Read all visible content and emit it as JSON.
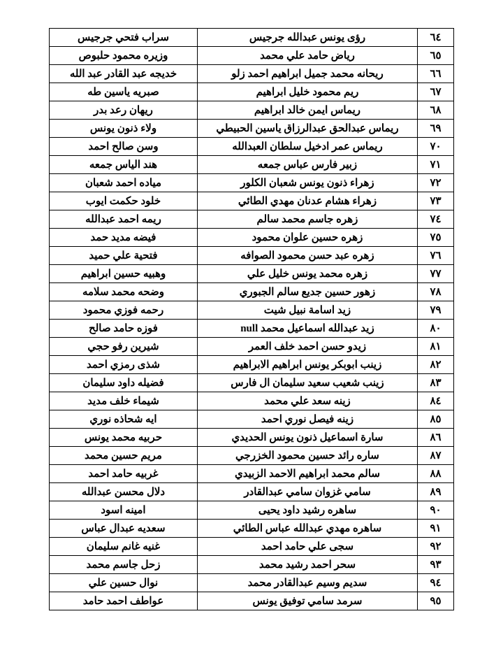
{
  "table": {
    "columns": [
      "num",
      "name1",
      "name2"
    ],
    "col_widths": {
      "num": "52px",
      "name1": "55%",
      "name2": "37%"
    },
    "border_color": "#000000",
    "text_color": "#000000",
    "background_color": "#ffffff",
    "font_size": 15,
    "font_weight": "bold",
    "rows": [
      {
        "num": "٦٤",
        "name1": "رؤى يونس عبدالله جرجيس",
        "name2": "سراب فتحي جرجيس"
      },
      {
        "num": "٦٥",
        "name1": "رياض حامد علي محمد",
        "name2": "وزيره محمود حلبوص"
      },
      {
        "num": "٦٦",
        "name1": "ريحانه محمد جميل ابراهيم احمد زلو",
        "name2": "خديجه عبد القادر عبد الله"
      },
      {
        "num": "٦٧",
        "name1": "ريم محمود خليل ابراهيم",
        "name2": "صبريه ياسين طه"
      },
      {
        "num": "٦٨",
        "name1": "ريماس ايمن خالد ابراهيم",
        "name2": "ريهان رعد بدر"
      },
      {
        "num": "٦٩",
        "name1": "ريماس عبدالحق عبدالرزاق ياسين الحبيطي",
        "name2": "ولاء ذنون يونس"
      },
      {
        "num": "٧٠",
        "name1": "ريماس عمر ادخيل سلطان العبدالله",
        "name2": "وسن صالح احمد"
      },
      {
        "num": "٧١",
        "name1": "زبير فارس عباس جمعه",
        "name2": "هند الياس جمعه"
      },
      {
        "num": "٧٢",
        "name1": "زهراء ذنون يونس شعبان الكلور",
        "name2": "مياده احمد شعبان"
      },
      {
        "num": "٧٣",
        "name1": "زهراء هشام عدنان مهدي الطائي",
        "name2": "خلود حكمت ايوب"
      },
      {
        "num": "٧٤",
        "name1": "زهره جاسم محمد سالم",
        "name2": "ريمه احمد عبدالله"
      },
      {
        "num": "٧٥",
        "name1": "زهره حسين علوان محمود",
        "name2": "فيضه مديد حمد"
      },
      {
        "num": "٧٦",
        "name1": "زهره عبد حسن محمود الصوافه",
        "name2": "فتحية علي حميد"
      },
      {
        "num": "٧٧",
        "name1": "زهره محمد يونس خليل علي",
        "name2": "وهبيه حسين ابراهيم"
      },
      {
        "num": "٧٨",
        "name1": "زهور حسين جديع سالم الجبوري",
        "name2": "وضحه محمد سلامه"
      },
      {
        "num": "٧٩",
        "name1": "زيد اسامة نبيل شيت",
        "name2": "رحمه فوزي محمود"
      },
      {
        "num": "٨٠",
        "name1": "زيد عبدالله اسماعيل محمد null",
        "name2": "فوزه حامد صالح"
      },
      {
        "num": "٨١",
        "name1": "زيدو حسن احمد خلف العمر",
        "name2": "شيرين رفو حجي"
      },
      {
        "num": "٨٢",
        "name1": "زينب ابوبكر يونس ابراهيم الابراهيم",
        "name2": "شذى رمزي احمد"
      },
      {
        "num": "٨٣",
        "name1": "زينب شعيب سعيد سليمان ال فارس",
        "name2": "فضيله داود سليمان"
      },
      {
        "num": "٨٤",
        "name1": "زينه سعد علي محمد",
        "name2": "شيماء خلف مديد"
      },
      {
        "num": "٨٥",
        "name1": "زينه فيصل نوري احمد",
        "name2": "ايه شحاذه نوري"
      },
      {
        "num": "٨٦",
        "name1": "سارة اسماعيل ذنون يونس الحديدي",
        "name2": "حربيه محمد يونس"
      },
      {
        "num": "٨٧",
        "name1": "ساره رائد حسين محمود الخزرجي",
        "name2": "مريم حسين محمد"
      },
      {
        "num": "٨٨",
        "name1": "سالم محمد ابراهيم الاحمد الزبيدي",
        "name2": "غربيه حامد احمد"
      },
      {
        "num": "٨٩",
        "name1": "سامي غزوان سامي عبدالقادر",
        "name2": "دلال محسن عبدالله"
      },
      {
        "num": "٩٠",
        "name1": "ساهره رشيد داود يحيى",
        "name2": "امينه اسود"
      },
      {
        "num": "٩١",
        "name1": "ساهره مهدي عبدالله عباس الطائي",
        "name2": "سعديه عبدال عباس"
      },
      {
        "num": "٩٢",
        "name1": "سجى علي حامد احمد",
        "name2": "غنيه غانم سليمان"
      },
      {
        "num": "٩٣",
        "name1": "سحر احمد رشيد محمد",
        "name2": "زحل جاسم محمد"
      },
      {
        "num": "٩٤",
        "name1": "سديم وسيم عبدالقادر محمد",
        "name2": "نوال حسين علي"
      },
      {
        "num": "٩٥",
        "name1": "سرمد سامي توفيق يونس",
        "name2": "عواطف احمد حامد"
      }
    ]
  }
}
